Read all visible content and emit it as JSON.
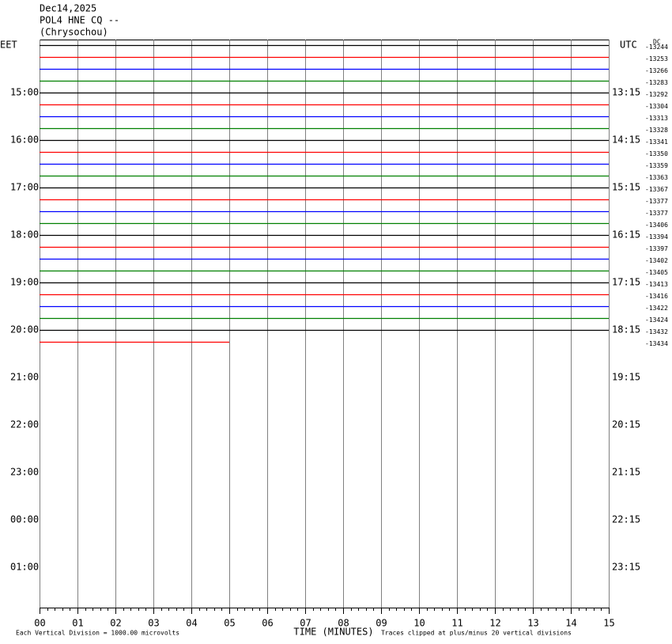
{
  "header": [
    "Dec14,2025",
    "POL4 HNE CQ --",
    "(Chrysochou)"
  ],
  "left_zone": "EET",
  "right_zone": "UTC",
  "dc_label": "DC",
  "left_hours": [
    "15:00",
    "16:00",
    "17:00",
    "18:00",
    "19:00",
    "20:00",
    "21:00",
    "22:00",
    "23:00",
    "00:00",
    "01:00"
  ],
  "right_hours": [
    "13:15",
    "14:15",
    "15:15",
    "16:15",
    "17:15",
    "18:15",
    "19:15",
    "20:15",
    "21:15",
    "22:15",
    "23:15"
  ],
  "x_ticks": [
    {
      "value": 0,
      "label": "00"
    },
    {
      "value": 1,
      "label": "01"
    },
    {
      "value": 2,
      "label": "02"
    },
    {
      "value": 3,
      "label": "03"
    },
    {
      "value": 4,
      "label": "04"
    },
    {
      "value": 5,
      "label": "05"
    },
    {
      "value": 6,
      "label": "06"
    },
    {
      "value": 7,
      "label": "07"
    },
    {
      "value": 8,
      "label": "08"
    },
    {
      "value": 9,
      "label": "09"
    },
    {
      "value": 10,
      "label": "10"
    },
    {
      "value": 11,
      "label": "11"
    },
    {
      "value": 12,
      "label": "12"
    },
    {
      "value": 13,
      "label": "13"
    },
    {
      "value": 14,
      "label": "14"
    },
    {
      "value": 15,
      "label": "15"
    }
  ],
  "x_label": "TIME (MINUTES)",
  "footer_left": "Each Vertical Division = 1000.00 microvolts",
  "footer_right": "Traces clipped at plus/minus 20 vertical divisions",
  "colors": [
    "#000000",
    "#ff0000",
    "#0000ff",
    "#008000"
  ],
  "offsets": [
    -13244,
    -13253,
    -13266,
    -13283,
    -13292,
    -13304,
    -13313,
    -13328,
    -13341,
    -13350,
    -13359,
    -13363,
    -13367,
    -13377,
    -13377,
    -13406,
    -13394,
    -13397,
    -13402,
    -13405,
    -13413,
    -13416,
    -13422,
    -13424,
    -13432,
    -13434
  ]
}
